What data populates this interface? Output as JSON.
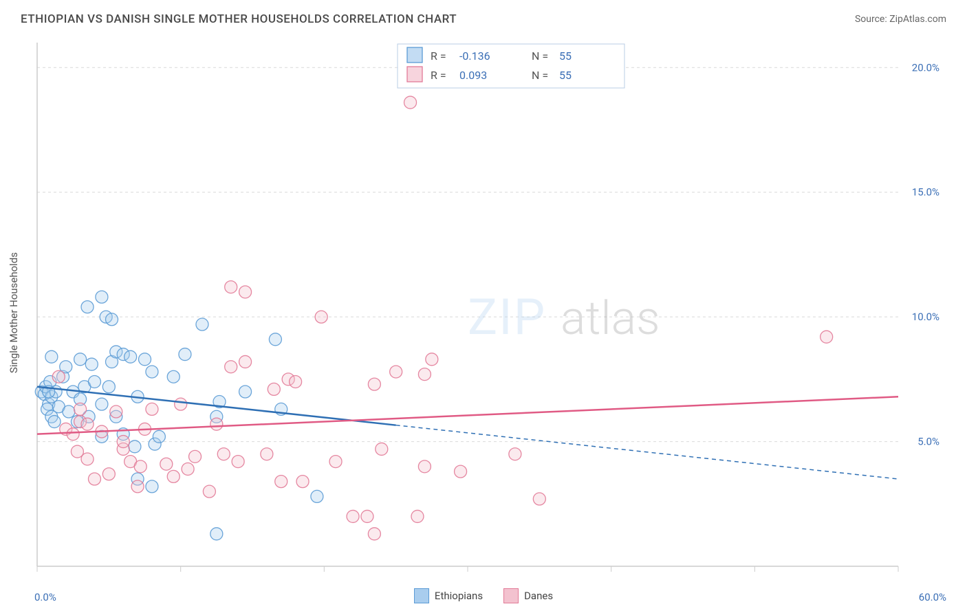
{
  "title": "ETHIOPIAN VS DANISH SINGLE MOTHER HOUSEHOLDS CORRELATION CHART",
  "source_label": "Source: ZipAtlas.com",
  "ylabel": "Single Mother Households",
  "watermark_a": "ZIP",
  "watermark_b": "atlas",
  "chart": {
    "type": "scatter",
    "xlim": [
      0,
      60
    ],
    "ylim": [
      0,
      21
    ],
    "xtick_positions": [
      0,
      10,
      20,
      30,
      40,
      50,
      60
    ],
    "x_tick_labels": {
      "0": "0.0%",
      "60": "60.0%"
    },
    "ytick_positions": [
      5,
      10,
      15,
      20
    ],
    "ytick_labels": [
      "5.0%",
      "10.0%",
      "15.0%",
      "20.0%"
    ],
    "grid_color": "#d9d9d9",
    "axis_color": "#cccccc",
    "background_color": "#ffffff",
    "text_color": "#555555",
    "axis_label_color": "#3b6fb6",
    "marker_radius": 9,
    "marker_fill_opacity": 0.35,
    "marker_stroke_opacity": 0.9,
    "series": [
      {
        "name": "Ethiopians",
        "color_fill": "#a9cdee",
        "color_stroke": "#5b9bd5",
        "line_color": "#2e6fb4",
        "line_solid_xmax": 25,
        "trend": {
          "x1": 0,
          "y1": 7.2,
          "x2": 60,
          "y2": 3.5
        },
        "R": "-0.136",
        "N": "55",
        "points": [
          [
            0.3,
            7.0
          ],
          [
            0.5,
            6.9
          ],
          [
            0.6,
            7.2
          ],
          [
            0.8,
            6.5
          ],
          [
            0.9,
            7.4
          ],
          [
            1.0,
            6.8
          ],
          [
            1.3,
            7.0
          ],
          [
            0.7,
            6.3
          ],
          [
            1.0,
            6.0
          ],
          [
            0.8,
            7.0
          ],
          [
            1.2,
            5.8
          ],
          [
            1.5,
            6.4
          ],
          [
            1.8,
            7.6
          ],
          [
            1.0,
            8.4
          ],
          [
            2.2,
            6.2
          ],
          [
            2.5,
            7.0
          ],
          [
            2.0,
            8.0
          ],
          [
            2.8,
            5.8
          ],
          [
            3.0,
            6.7
          ],
          [
            3.3,
            7.2
          ],
          [
            3.0,
            8.3
          ],
          [
            3.6,
            6.0
          ],
          [
            3.5,
            10.4
          ],
          [
            3.8,
            8.1
          ],
          [
            4.0,
            7.4
          ],
          [
            4.5,
            6.5
          ],
          [
            4.5,
            5.2
          ],
          [
            4.8,
            10.0
          ],
          [
            4.5,
            10.8
          ],
          [
            5.0,
            7.2
          ],
          [
            5.2,
            8.2
          ],
          [
            5.2,
            9.9
          ],
          [
            5.5,
            6.0
          ],
          [
            5.5,
            8.6
          ],
          [
            6.0,
            5.3
          ],
          [
            6.0,
            8.5
          ],
          [
            6.5,
            8.4
          ],
          [
            6.8,
            4.8
          ],
          [
            7.0,
            3.5
          ],
          [
            7.0,
            6.8
          ],
          [
            7.5,
            8.3
          ],
          [
            8.0,
            7.8
          ],
          [
            8.2,
            4.9
          ],
          [
            8.5,
            5.2
          ],
          [
            8.0,
            3.2
          ],
          [
            9.5,
            7.6
          ],
          [
            10.3,
            8.5
          ],
          [
            11.5,
            9.7
          ],
          [
            12.5,
            6.0
          ],
          [
            12.5,
            1.3
          ],
          [
            12.7,
            6.6
          ],
          [
            14.5,
            7.0
          ],
          [
            16.6,
            9.1
          ],
          [
            17.0,
            6.3
          ],
          [
            19.5,
            2.8
          ]
        ]
      },
      {
        "name": "Danes",
        "color_fill": "#f3c2cf",
        "color_stroke": "#e27a97",
        "line_color": "#e05a84",
        "line_solid_xmax": 60,
        "trend": {
          "x1": 0,
          "y1": 5.3,
          "x2": 60,
          "y2": 6.8
        },
        "R": "0.093",
        "N": "55",
        "points": [
          [
            1.5,
            7.6
          ],
          [
            2.0,
            5.5
          ],
          [
            2.5,
            5.3
          ],
          [
            2.8,
            4.6
          ],
          [
            3.0,
            5.8
          ],
          [
            3.0,
            6.3
          ],
          [
            3.5,
            4.3
          ],
          [
            3.5,
            5.7
          ],
          [
            4.0,
            3.5
          ],
          [
            4.5,
            5.4
          ],
          [
            5.0,
            3.7
          ],
          [
            5.5,
            6.2
          ],
          [
            6.0,
            4.7
          ],
          [
            6.0,
            5.0
          ],
          [
            6.5,
            4.2
          ],
          [
            7.0,
            3.2
          ],
          [
            7.2,
            4.0
          ],
          [
            7.5,
            5.5
          ],
          [
            8.0,
            6.3
          ],
          [
            9.0,
            4.1
          ],
          [
            9.5,
            3.6
          ],
          [
            10.5,
            3.9
          ],
          [
            10.0,
            6.5
          ],
          [
            11.0,
            4.4
          ],
          [
            12.0,
            3.0
          ],
          [
            12.5,
            5.7
          ],
          [
            13.0,
            4.5
          ],
          [
            13.5,
            8.0
          ],
          [
            13.5,
            11.2
          ],
          [
            14.0,
            4.2
          ],
          [
            14.5,
            11.0
          ],
          [
            14.5,
            8.2
          ],
          [
            16.0,
            4.5
          ],
          [
            16.5,
            7.1
          ],
          [
            17.0,
            3.4
          ],
          [
            17.5,
            7.5
          ],
          [
            18.0,
            7.4
          ],
          [
            18.5,
            3.4
          ],
          [
            19.8,
            10.0
          ],
          [
            20.8,
            4.2
          ],
          [
            22.0,
            2.0
          ],
          [
            23.0,
            2.0
          ],
          [
            23.5,
            1.3
          ],
          [
            23.5,
            7.3
          ],
          [
            24.0,
            4.7
          ],
          [
            25.0,
            7.8
          ],
          [
            26.0,
            18.6
          ],
          [
            26.5,
            2.0
          ],
          [
            27.0,
            4.0
          ],
          [
            27.5,
            8.3
          ],
          [
            29.5,
            3.8
          ],
          [
            35.0,
            2.7
          ],
          [
            33.3,
            4.5
          ],
          [
            55.0,
            9.2
          ],
          [
            27.0,
            7.7
          ]
        ]
      }
    ],
    "stats_box": {
      "border_color": "#b9cde4",
      "bg_color": "#ffffff",
      "label_color": "#555555",
      "value_color": "#3b6fb6",
      "fontsize": 16
    },
    "footer_legend": {
      "items": [
        {
          "label": "Ethiopians",
          "fill": "#a9cdee",
          "stroke": "#5b9bd5"
        },
        {
          "label": "Danes",
          "fill": "#f3c2cf",
          "stroke": "#e27a97"
        }
      ]
    }
  }
}
